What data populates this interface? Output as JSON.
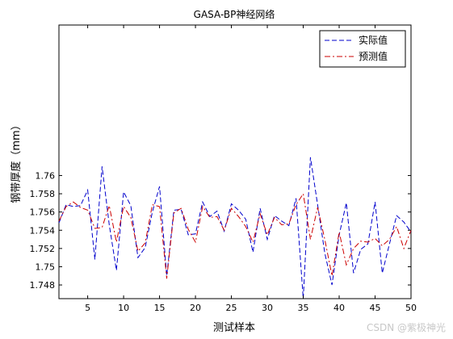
{
  "chart_data": {
    "type": "line",
    "title": "GASA-BP神经网络",
    "xlabel": "测试样本",
    "ylabel": "钢带厚度（mm）",
    "xlim": [
      1,
      50
    ],
    "ylim": [
      1.7465,
      1.7765
    ],
    "xticks": [
      5,
      10,
      15,
      20,
      25,
      30,
      35,
      40,
      45,
      50
    ],
    "yticks": [
      1.748,
      1.75,
      1.752,
      1.754,
      1.756,
      1.758,
      1.76
    ],
    "ytick_labels": [
      "1.748",
      "1.75",
      "1.752",
      "1.754",
      "1.756",
      "1.758",
      "1.76"
    ],
    "grid": false,
    "legend_position": "top-right",
    "x": [
      1,
      2,
      3,
      4,
      5,
      6,
      7,
      8,
      9,
      10,
      11,
      12,
      13,
      14,
      15,
      16,
      17,
      18,
      19,
      20,
      21,
      22,
      23,
      24,
      25,
      26,
      27,
      28,
      29,
      30,
      31,
      32,
      33,
      34,
      35,
      36,
      37,
      38,
      39,
      40,
      41,
      42,
      43,
      44,
      45,
      46,
      47,
      48,
      49,
      50
    ],
    "series": [
      {
        "name": "实际值",
        "color": "#0000cc",
        "dash": "dashed",
        "values": [
          1.7548,
          1.7568,
          1.7566,
          1.7567,
          1.7584,
          1.7508,
          1.761,
          1.7546,
          1.7496,
          1.7582,
          1.7567,
          1.751,
          1.7521,
          1.756,
          1.7588,
          1.749,
          1.7562,
          1.7563,
          1.7535,
          1.7536,
          1.7571,
          1.7555,
          1.7561,
          1.7539,
          1.7569,
          1.7562,
          1.7552,
          1.7516,
          1.7564,
          1.753,
          1.7556,
          1.755,
          1.7545,
          1.7575,
          1.7465,
          1.762,
          1.7568,
          1.7515,
          1.748,
          1.7535,
          1.757,
          1.7493,
          1.7519,
          1.7525,
          1.7571,
          1.7493,
          1.7525,
          1.7556,
          1.7549,
          1.7538
        ]
      },
      {
        "name": "预测值",
        "color": "#cc0000",
        "dash": "dashdot",
        "values": [
          1.755,
          1.7566,
          1.7571,
          1.7565,
          1.7562,
          1.7542,
          1.7543,
          1.7567,
          1.7527,
          1.7566,
          1.7554,
          1.7517,
          1.7526,
          1.7568,
          1.7566,
          1.7487,
          1.7559,
          1.7564,
          1.7541,
          1.7527,
          1.7566,
          1.7554,
          1.7555,
          1.754,
          1.7564,
          1.7555,
          1.7544,
          1.7527,
          1.7558,
          1.7535,
          1.7554,
          1.7546,
          1.7547,
          1.7568,
          1.758,
          1.753,
          1.7565,
          1.753,
          1.749,
          1.7538,
          1.7502,
          1.752,
          1.7528,
          1.7527,
          1.7531,
          1.7523,
          1.753,
          1.7544,
          1.752,
          1.754
        ]
      }
    ]
  },
  "watermark": "CSDN @紫极神光"
}
